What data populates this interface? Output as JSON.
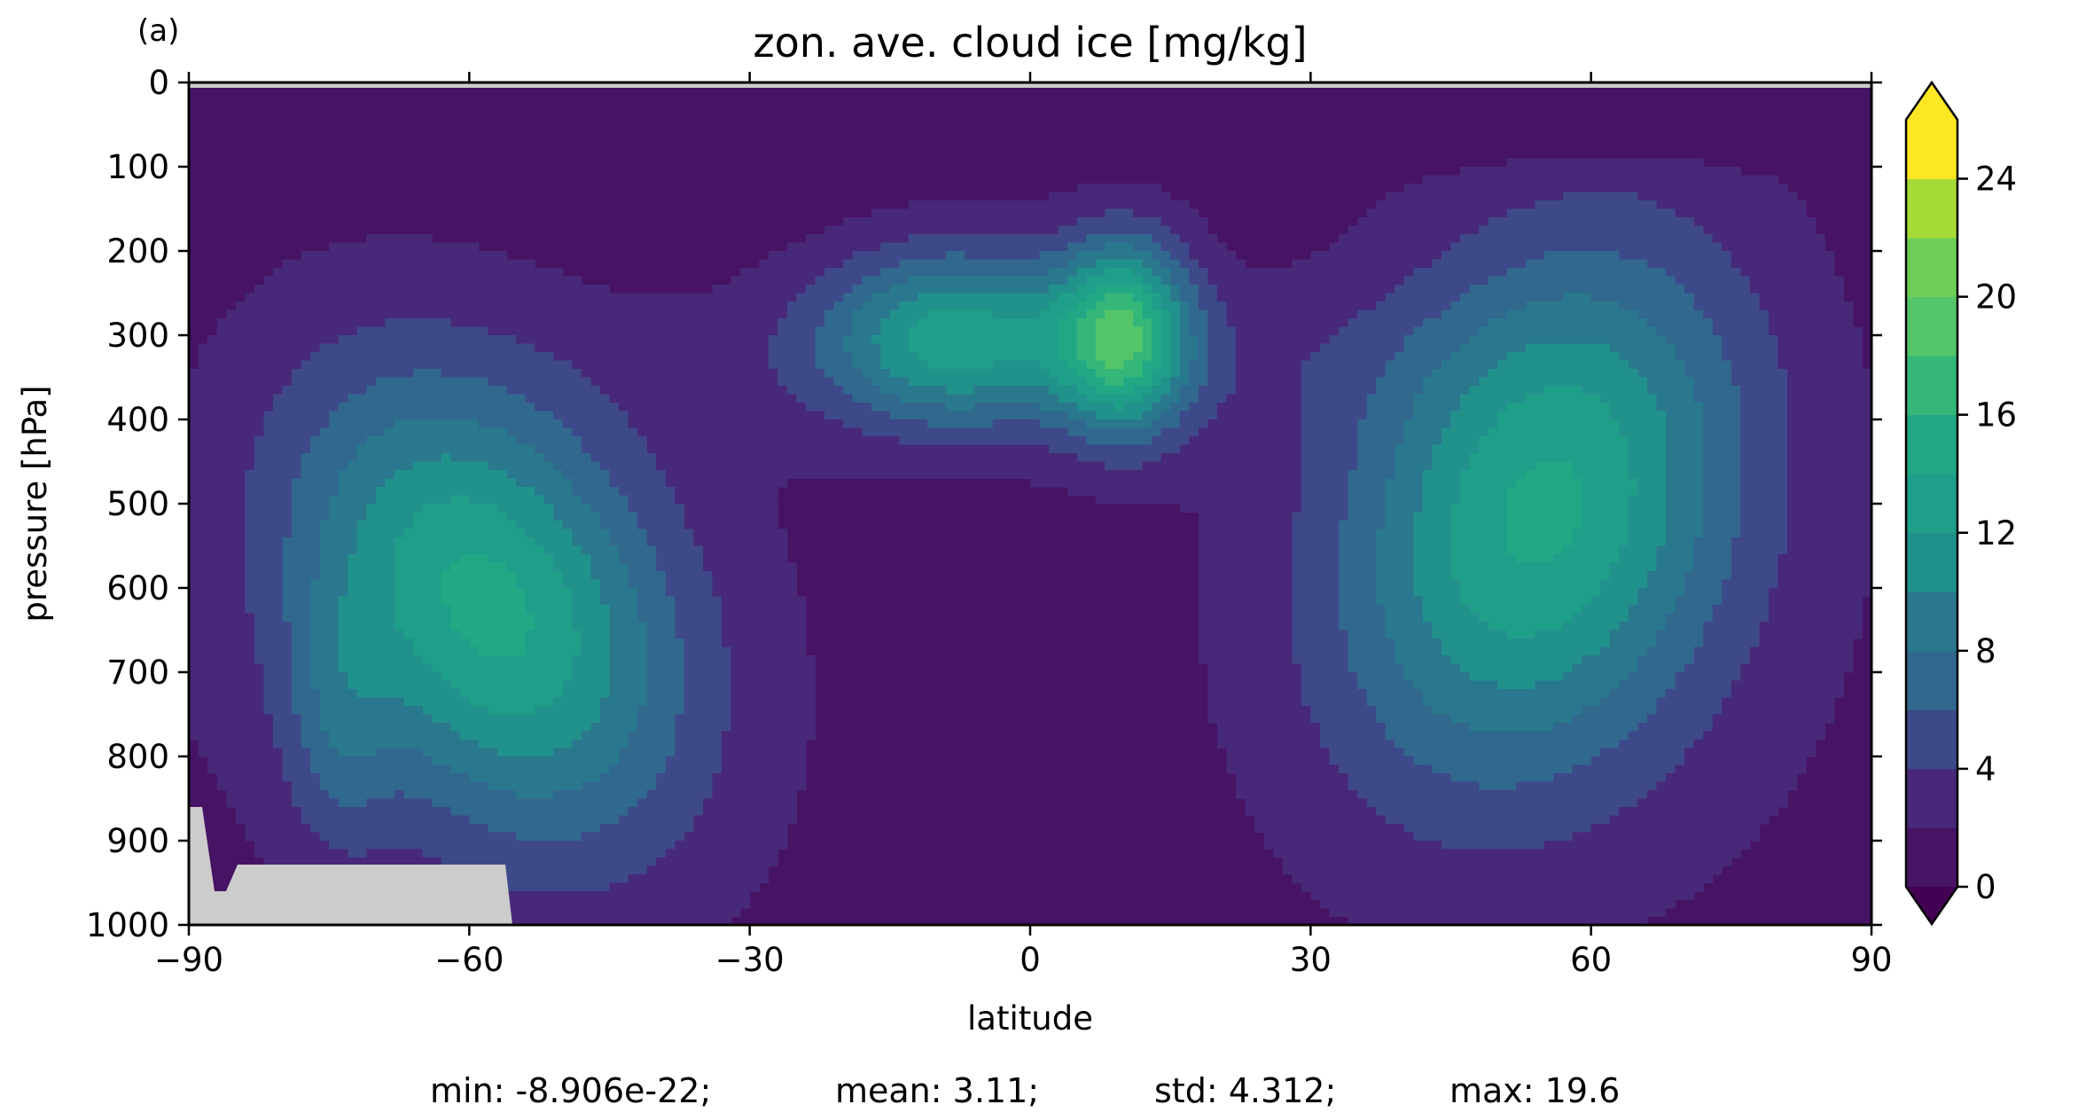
{
  "panel_label": "(a)",
  "chart_data": {
    "type": "contourf",
    "title": "zon. ave. cloud ice [mg/kg]",
    "xlabel": "latitude",
    "ylabel": "pressure [hPa]",
    "xlim": [
      -90,
      90
    ],
    "ylim": [
      1000,
      0
    ],
    "xticks": [
      -90,
      -60,
      -30,
      0,
      30,
      60,
      90
    ],
    "xtick_labels": [
      "−90",
      "−60",
      "−30",
      "0",
      "30",
      "60",
      "90"
    ],
    "yticks": [
      0,
      100,
      200,
      300,
      400,
      500,
      600,
      700,
      800,
      900,
      1000
    ],
    "ytick_labels": [
      "0",
      "100",
      "200",
      "300",
      "400",
      "500",
      "600",
      "700",
      "800",
      "900",
      "1000"
    ],
    "colorbar": {
      "levels": [
        0,
        2,
        4,
        6,
        8,
        10,
        12,
        14,
        16,
        18,
        20,
        22,
        24,
        26
      ],
      "colors": [
        "#471365",
        "#482878",
        "#3e4989",
        "#31688e",
        "#2a788e",
        "#21918c",
        "#1f9e89",
        "#22a884",
        "#35b779",
        "#54c568",
        "#6ece58",
        "#a5db36",
        "#fde725"
      ],
      "under_color": "#440154",
      "over_color": "#fde725",
      "ticks": [
        0,
        4,
        8,
        12,
        16,
        20,
        24
      ],
      "tick_labels": [
        "0",
        "4",
        "8",
        "12",
        "16",
        "20",
        "24"
      ],
      "extend": "both"
    },
    "masked_color": "#cccccc",
    "features": [
      {
        "name": "southern-midlatitude-max",
        "lat": -58,
        "p": 620,
        "value": 17
      },
      {
        "name": "tropical-max-south",
        "lat": -8,
        "p": 300,
        "value": 15
      },
      {
        "name": "tropical-max-north",
        "lat": 10,
        "p": 300,
        "value": 18
      },
      {
        "name": "northern-midlatitude-max",
        "lat": 55,
        "p": 480,
        "value": 15
      }
    ],
    "stats": {
      "min": "min: -8.906e-22;",
      "mean": "mean: 3.11;",
      "std": "std: 4.312;",
      "max": "max: 19.6"
    }
  }
}
